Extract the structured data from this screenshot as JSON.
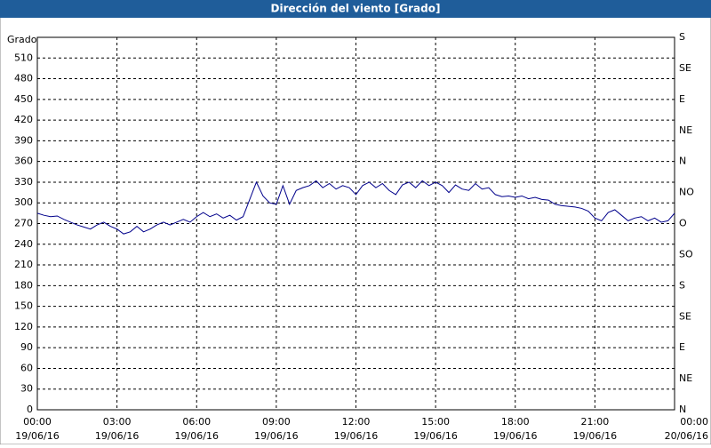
{
  "chart_data": {
    "type": "line",
    "title": "Dirección del viento [Grado]",
    "ylabel": "Grado",
    "xlim": [
      0,
      24
    ],
    "ylim": [
      0,
      540
    ],
    "y2lim": [
      0,
      540
    ],
    "grid": true,
    "xticks": [
      {
        "value": 0,
        "label": "00:00"
      },
      {
        "value": 3,
        "label": "03:00"
      },
      {
        "value": 6,
        "label": "06:00"
      },
      {
        "value": 9,
        "label": "09:00"
      },
      {
        "value": 12,
        "label": "12:00"
      },
      {
        "value": 15,
        "label": "15:00"
      },
      {
        "value": 18,
        "label": "18:00"
      },
      {
        "value": 21,
        "label": "21:00"
      },
      {
        "value": 24,
        "label": "00:00"
      }
    ],
    "xtick_dates": [
      "19/06/16",
      "19/06/16",
      "19/06/16",
      "19/06/16",
      "19/06/16",
      "19/06/16",
      "19/06/16",
      "19/06/16",
      "20/06/16"
    ],
    "yticks": [
      0,
      30,
      60,
      90,
      120,
      150,
      180,
      210,
      240,
      270,
      300,
      330,
      360,
      390,
      420,
      450,
      480,
      510
    ],
    "y2ticks": [
      {
        "value": 0,
        "label": "N"
      },
      {
        "value": 45,
        "label": "NE"
      },
      {
        "value": 90,
        "label": "E"
      },
      {
        "value": 135,
        "label": "SE"
      },
      {
        "value": 180,
        "label": "S"
      },
      {
        "value": 225,
        "label": "SO"
      },
      {
        "value": 270,
        "label": "O"
      },
      {
        "value": 315,
        "label": "NO"
      },
      {
        "value": 360,
        "label": "N"
      },
      {
        "value": 405,
        "label": "NE"
      },
      {
        "value": 450,
        "label": "E"
      },
      {
        "value": 495,
        "label": "SE"
      },
      {
        "value": 540,
        "label": "S"
      }
    ],
    "x": [
      0,
      0.25,
      0.5,
      0.75,
      1,
      1.25,
      1.5,
      1.75,
      2,
      2.25,
      2.5,
      2.75,
      3,
      3.25,
      3.5,
      3.75,
      4,
      4.25,
      4.5,
      4.75,
      5,
      5.25,
      5.5,
      5.75,
      6,
      6.25,
      6.5,
      6.75,
      7,
      7.25,
      7.5,
      7.75,
      8,
      8.25,
      8.5,
      8.75,
      9,
      9.25,
      9.5,
      9.75,
      10,
      10.25,
      10.5,
      10.75,
      11,
      11.25,
      11.5,
      11.75,
      12,
      12.25,
      12.5,
      12.75,
      13,
      13.25,
      13.5,
      13.75,
      14,
      14.25,
      14.5,
      14.75,
      15,
      15.25,
      15.5,
      15.75,
      16,
      16.25,
      16.5,
      16.75,
      17,
      17.25,
      17.5,
      17.75,
      18,
      18.25,
      18.5,
      18.75,
      19,
      19.25,
      19.5,
      19.75,
      20,
      20.25,
      20.5,
      20.75,
      21,
      21.25,
      21.5,
      21.75,
      22,
      22.25,
      22.5,
      22.75,
      23,
      23.25,
      23.5,
      23.75,
      24
    ],
    "series": [
      {
        "color": "#00008b",
        "values": [
          285,
          282,
          280,
          281,
          276,
          272,
          268,
          265,
          262,
          268,
          272,
          266,
          262,
          255,
          258,
          266,
          258,
          262,
          268,
          272,
          268,
          272,
          276,
          272,
          280,
          286,
          280,
          284,
          278,
          282,
          275,
          280,
          305,
          330,
          310,
          300,
          298,
          325,
          298,
          318,
          322,
          325,
          332,
          322,
          328,
          320,
          325,
          322,
          312,
          325,
          330,
          322,
          328,
          318,
          312,
          326,
          330,
          322,
          332,
          325,
          330,
          325,
          315,
          326,
          320,
          318,
          328,
          320,
          322,
          312,
          309,
          310,
          308,
          310,
          306,
          308,
          305,
          304,
          298,
          296,
          295,
          294,
          292,
          288,
          278,
          274,
          286,
          290,
          282,
          274,
          278,
          280,
          274,
          278,
          272,
          274,
          285
        ]
      }
    ]
  }
}
